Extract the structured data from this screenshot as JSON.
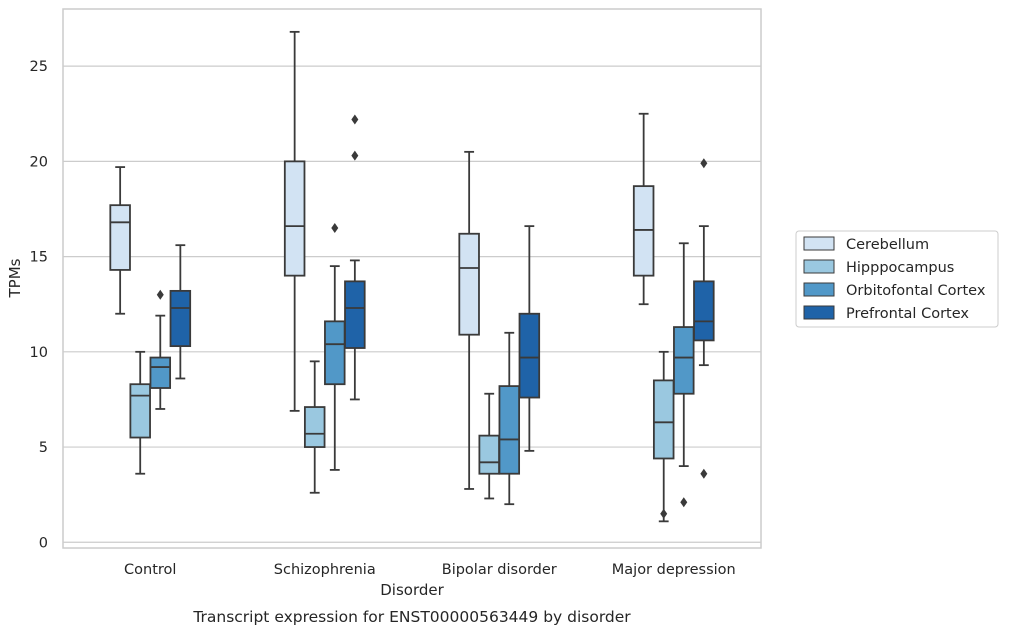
{
  "chart_data": {
    "type": "box",
    "xlabel": "Disorder",
    "ylabel": "TPMs",
    "caption": "Transcript expression for ENST00000563449 by disorder",
    "categories": [
      "Control",
      "Schizophrenia",
      "Bipolar disorder",
      "Major depression"
    ],
    "ylim": [
      -0.3,
      28.0
    ],
    "yticks": [
      0,
      5,
      10,
      15,
      20,
      25
    ],
    "grid": "horizontal",
    "legend_position": "right",
    "series": [
      {
        "name": "Cerebellum",
        "color": "#d2e3f3",
        "boxes": [
          {
            "whislo": 12.0,
            "q1": 14.3,
            "med": 16.8,
            "q3": 17.7,
            "whishi": 19.7,
            "fliers": []
          },
          {
            "whislo": 6.9,
            "q1": 14.0,
            "med": 16.6,
            "q3": 20.0,
            "whishi": 26.8,
            "fliers": []
          },
          {
            "whislo": 2.8,
            "q1": 10.9,
            "med": 14.4,
            "q3": 16.2,
            "whishi": 20.5,
            "fliers": []
          },
          {
            "whislo": 12.5,
            "q1": 14.0,
            "med": 16.4,
            "q3": 18.7,
            "whishi": 22.5,
            "fliers": []
          }
        ]
      },
      {
        "name": "Hipppocampus",
        "color": "#9ac8e0",
        "boxes": [
          {
            "whislo": 3.6,
            "q1": 5.5,
            "med": 7.7,
            "q3": 8.3,
            "whishi": 10.0,
            "fliers": []
          },
          {
            "whislo": 2.6,
            "q1": 5.0,
            "med": 5.7,
            "q3": 7.1,
            "whishi": 9.5,
            "fliers": []
          },
          {
            "whislo": 2.3,
            "q1": 3.6,
            "med": 4.2,
            "q3": 5.6,
            "whishi": 7.8,
            "fliers": []
          },
          {
            "whislo": 1.1,
            "q1": 4.4,
            "med": 6.3,
            "q3": 8.5,
            "whishi": 10.0,
            "fliers": [
              1.5
            ]
          }
        ]
      },
      {
        "name": "Orbitofontal Cortex",
        "color": "#5198c8",
        "boxes": [
          {
            "whislo": 7.0,
            "q1": 8.1,
            "med": 9.2,
            "q3": 9.7,
            "whishi": 11.9,
            "fliers": [
              13.0
            ]
          },
          {
            "whislo": 3.8,
            "q1": 8.3,
            "med": 10.4,
            "q3": 11.6,
            "whishi": 14.5,
            "fliers": [
              16.5
            ]
          },
          {
            "whislo": 2.0,
            "q1": 3.6,
            "med": 5.4,
            "q3": 8.2,
            "whishi": 11.0,
            "fliers": []
          },
          {
            "whislo": 4.0,
            "q1": 7.8,
            "med": 9.7,
            "q3": 11.3,
            "whishi": 15.7,
            "fliers": [
              2.1
            ]
          }
        ]
      },
      {
        "name": "Prefrontal Cortex",
        "color": "#1f63a8",
        "boxes": [
          {
            "whislo": 8.6,
            "q1": 10.3,
            "med": 12.3,
            "q3": 13.2,
            "whishi": 15.6,
            "fliers": []
          },
          {
            "whislo": 7.5,
            "q1": 10.2,
            "med": 12.3,
            "q3": 13.7,
            "whishi": 14.8,
            "fliers": [
              20.3,
              22.2
            ]
          },
          {
            "whislo": 4.8,
            "q1": 7.6,
            "med": 9.7,
            "q3": 12.0,
            "whishi": 16.6,
            "fliers": []
          },
          {
            "whislo": 9.3,
            "q1": 10.6,
            "med": 11.6,
            "q3": 13.7,
            "whishi": 16.6,
            "fliers": [
              3.6,
              19.9
            ]
          }
        ]
      }
    ]
  }
}
